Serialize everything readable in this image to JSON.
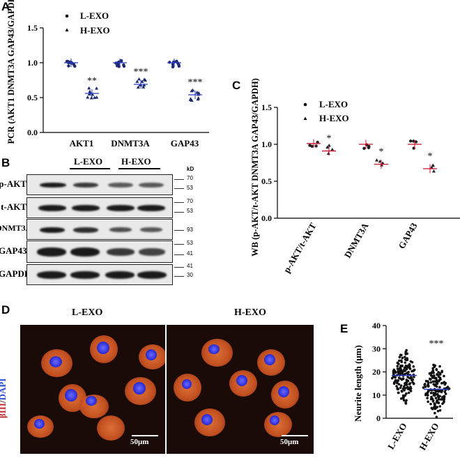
{
  "panels": {
    "A": "A",
    "B": "B",
    "C": "C",
    "D": "D",
    "E": "E"
  },
  "chart_data": [
    {
      "panel": "A",
      "type": "scatter",
      "ylabel": "PCR (AKT1 DNMT3A GAP43/GAPDH)",
      "categories": [
        "AKT1",
        "DNMT3A",
        "GAP43"
      ],
      "ylim": [
        0.0,
        1.5
      ],
      "yticks": [
        "0.0",
        "0.5",
        "1.0",
        "1.5"
      ],
      "legend": [
        "L-EXO",
        "H-EXO"
      ],
      "series": [
        {
          "name": "L-EXO",
          "means": [
            1.0,
            1.0,
            1.0
          ]
        },
        {
          "name": "H-EXO",
          "means": [
            0.56,
            0.69,
            0.54
          ]
        }
      ],
      "significance": [
        "**",
        "***",
        "***"
      ]
    },
    {
      "panel": "C",
      "type": "scatter",
      "ylabel": "WB (p-AKT/t-AKT DNMT3A GAP43/GAPDH)",
      "categories": [
        "p-AKT/t-AKT",
        "DNMT3A",
        "GAP43"
      ],
      "ylim": [
        0.0,
        1.5
      ],
      "yticks": [
        "0.0",
        "0.5",
        "1.0",
        "1.5"
      ],
      "legend": [
        "L-EXO",
        "H-EXO"
      ],
      "series": [
        {
          "name": "L-EXO",
          "means": [
            1.01,
            1.0,
            1.0
          ]
        },
        {
          "name": "H-EXO",
          "means": [
            0.91,
            0.73,
            0.67
          ]
        }
      ],
      "significance": [
        "*",
        "*",
        "*"
      ]
    },
    {
      "panel": "E",
      "type": "scatter",
      "ylabel": "Neurite length (μm)",
      "categories": [
        "L-EXO",
        "H-EXO"
      ],
      "ylim": [
        0,
        40
      ],
      "yticks": [
        "0",
        "10",
        "20",
        "30",
        "40"
      ],
      "means": [
        18.5,
        12.5
      ],
      "significance": [
        "",
        "***"
      ]
    }
  ],
  "blot": {
    "groups": [
      "L-EXO",
      "H-EXO"
    ],
    "kd_label": "kD",
    "rows": [
      {
        "label": "p-AKT",
        "markers": [
          "70",
          "53"
        ]
      },
      {
        "label": "t-AKT",
        "markers": [
          "70",
          "53"
        ]
      },
      {
        "label": "DNMT3A",
        "markers": [
          "93"
        ]
      },
      {
        "label": "GAP43",
        "markers": [
          "53",
          "41"
        ]
      },
      {
        "label": "GAPDH",
        "markers": [
          "41",
          "30"
        ]
      }
    ]
  },
  "micrograph": {
    "stain_red": "βIII",
    "stain_sep": "/",
    "stain_blue": "DAPI",
    "left_title": "L-EXO",
    "right_title": "H-EXO",
    "scalebar": "50μm"
  },
  "colors": {
    "l_points": "#1f2a6e",
    "h_points": "#7a1f6e",
    "mean_line": "#c8102e",
    "blue_pt": "#2a3cc8",
    "red_stain": "#c0282d",
    "blue_stain": "#2e4fd0"
  }
}
